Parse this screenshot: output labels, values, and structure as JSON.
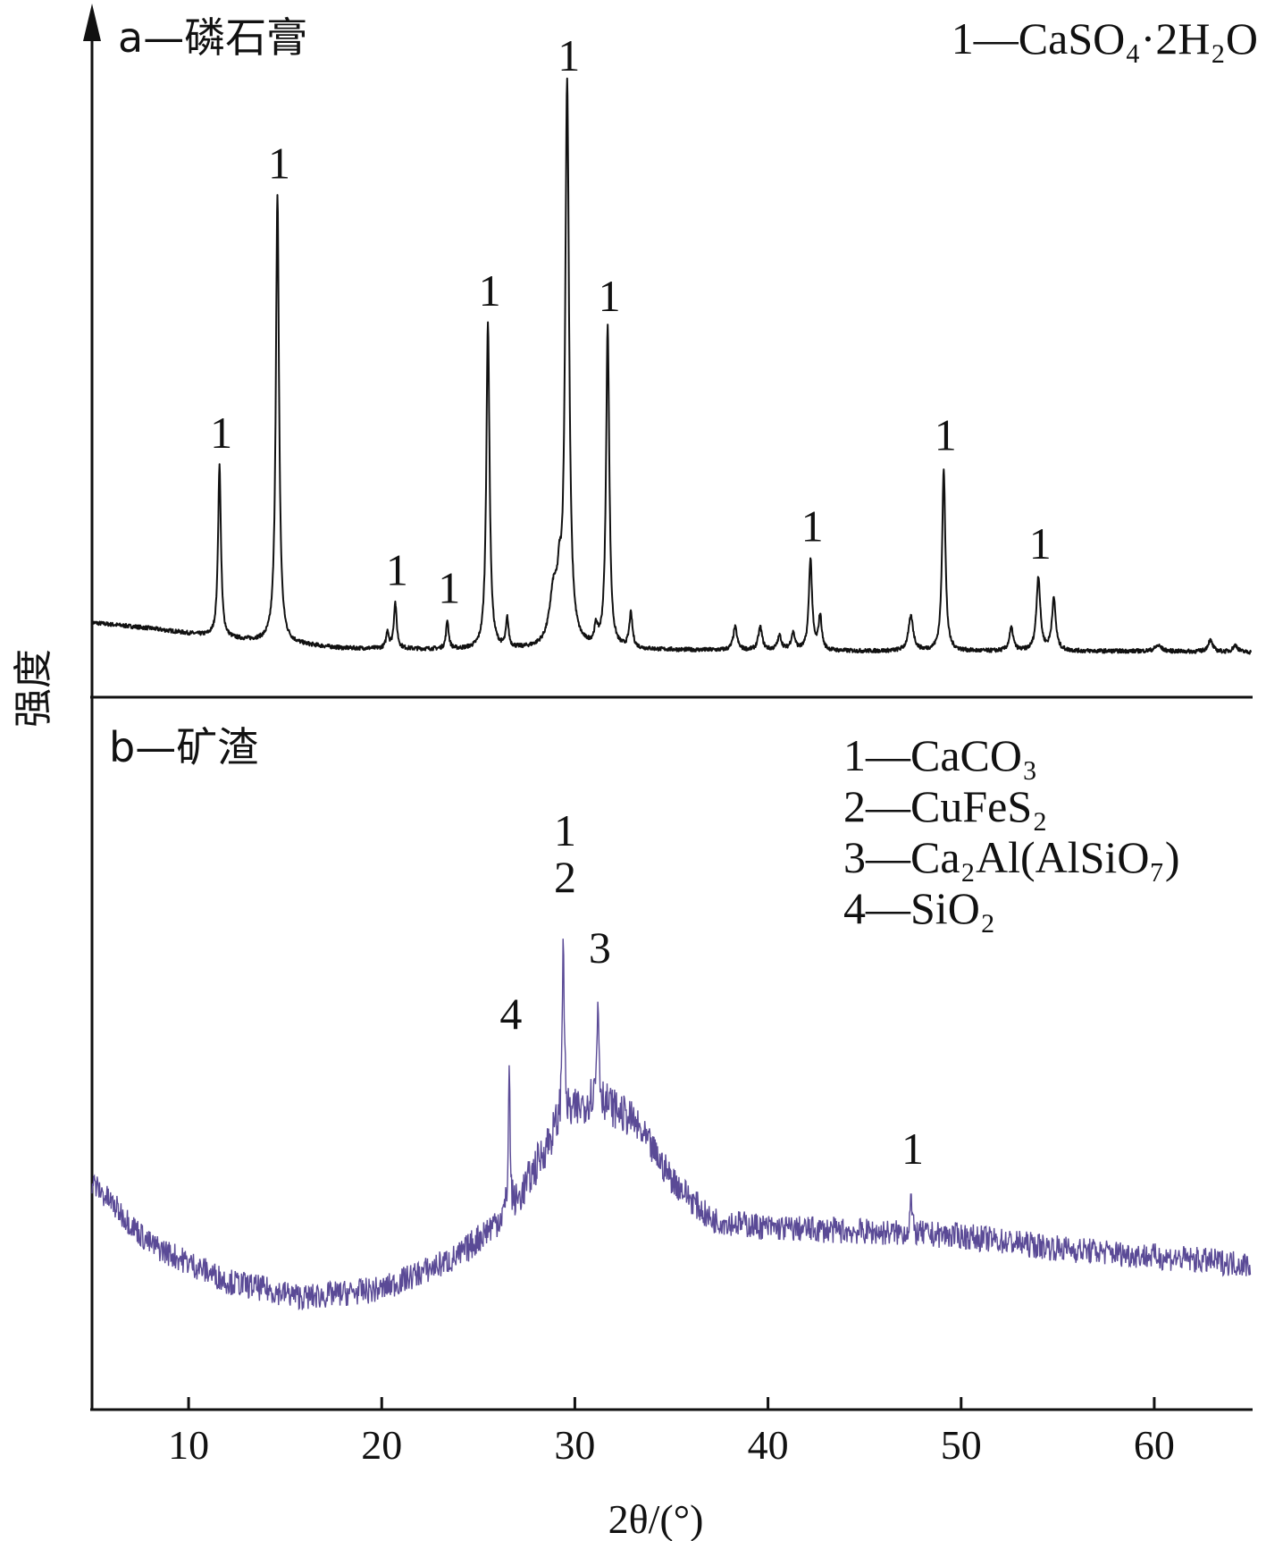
{
  "colors": {
    "axis": "#111111",
    "trace_a": "#111111",
    "trace_b": "#5a4a96"
  },
  "chart_data": {
    "type": "line",
    "title": "",
    "xlabel": "2θ/(°)",
    "ylabel": "强度",
    "xlim": [
      5,
      65
    ],
    "x_ticks": [
      10,
      20,
      30,
      40,
      50,
      60
    ],
    "x_tick_labels": [
      "10",
      "20",
      "30",
      "40",
      "50",
      "60"
    ],
    "grid": false,
    "panels": [
      {
        "id": "a",
        "label": "a—磷石膏",
        "legend": [
          "1—CaSO₄·2H₂O"
        ],
        "legend_position": "top-right",
        "y_range": [
          0,
          100
        ],
        "baseline": {
          "x": [
            5,
            8,
            12,
            18,
            25,
            30,
            35,
            40,
            45,
            50,
            55,
            60,
            65
          ],
          "y": [
            6,
            5,
            3.2,
            1.5,
            1.2,
            1.3,
            1.2,
            1.1,
            1.0,
            1.0,
            1.0,
            1.0,
            0.8
          ]
        },
        "peaks": [
          {
            "x": 11.6,
            "y": 30,
            "w": 0.09,
            "label": "1"
          },
          {
            "x": 14.6,
            "y": 78,
            "w": 0.1,
            "label": "1"
          },
          {
            "x": 20.7,
            "y": 8,
            "w": 0.09,
            "label": "1"
          },
          {
            "x": 20.3,
            "y": 3,
            "w": 0.08,
            "label": ""
          },
          {
            "x": 23.4,
            "y": 5,
            "w": 0.08,
            "label": "1"
          },
          {
            "x": 25.5,
            "y": 57,
            "w": 0.1,
            "label": "1"
          },
          {
            "x": 26.5,
            "y": 5,
            "w": 0.08,
            "label": ""
          },
          {
            "x": 28.9,
            "y": 9,
            "w": 0.25,
            "label": ""
          },
          {
            "x": 29.2,
            "y": 7,
            "w": 0.12,
            "label": ""
          },
          {
            "x": 29.6,
            "y": 98,
            "w": 0.12,
            "label": "1"
          },
          {
            "x": 31.1,
            "y": 3,
            "w": 0.1,
            "label": ""
          },
          {
            "x": 31.7,
            "y": 56,
            "w": 0.1,
            "label": "1"
          },
          {
            "x": 32.9,
            "y": 6,
            "w": 0.1,
            "label": ""
          },
          {
            "x": 38.3,
            "y": 4,
            "w": 0.12,
            "label": ""
          },
          {
            "x": 39.6,
            "y": 4,
            "w": 0.12,
            "label": ""
          },
          {
            "x": 40.6,
            "y": 2.5,
            "w": 0.12,
            "label": ""
          },
          {
            "x": 41.3,
            "y": 3,
            "w": 0.12,
            "label": ""
          },
          {
            "x": 42.2,
            "y": 16,
            "w": 0.1,
            "label": "1"
          },
          {
            "x": 42.7,
            "y": 6,
            "w": 0.1,
            "label": ""
          },
          {
            "x": 47.4,
            "y": 6,
            "w": 0.15,
            "label": ""
          },
          {
            "x": 49.1,
            "y": 32,
            "w": 0.1,
            "label": "1"
          },
          {
            "x": 52.6,
            "y": 4,
            "w": 0.12,
            "label": ""
          },
          {
            "x": 54.0,
            "y": 13,
            "w": 0.12,
            "label": "1"
          },
          {
            "x": 54.8,
            "y": 9,
            "w": 0.12,
            "label": ""
          },
          {
            "x": 60.2,
            "y": 1,
            "w": 0.2,
            "label": ""
          },
          {
            "x": 62.9,
            "y": 2,
            "w": 0.15,
            "label": ""
          },
          {
            "x": 64.2,
            "y": 1.2,
            "w": 0.15,
            "label": ""
          }
        ]
      },
      {
        "id": "b",
        "label": "b—矿渣",
        "legend": [
          "1—CaCO₃",
          "2—CuFeS₂",
          "3—Ca₂Al(AlSiO₇)",
          "4—SiO₂"
        ],
        "legend_position": "top-right",
        "y_range": [
          0,
          100
        ],
        "baseline": {
          "x": [
            5,
            8,
            12,
            16,
            20,
            24,
            27,
            29,
            31,
            33,
            35,
            37,
            40,
            45,
            50,
            55,
            60,
            65
          ],
          "y": [
            32,
            17,
            8,
            4,
            6,
            14,
            27,
            45,
            53,
            47,
            33,
            23,
            21,
            20,
            19,
            16,
            14,
            12
          ]
        },
        "noise_amplitude": 4,
        "peaks": [
          {
            "x": 26.6,
            "y": 36,
            "w": 0.05,
            "label": "4"
          },
          {
            "x": 29.4,
            "y": 48,
            "w": 0.06,
            "label": "1\n2"
          },
          {
            "x": 31.2,
            "y": 25,
            "w": 0.06,
            "label": "3"
          },
          {
            "x": 47.4,
            "y": 9,
            "w": 0.06,
            "label": "1"
          }
        ]
      }
    ]
  }
}
